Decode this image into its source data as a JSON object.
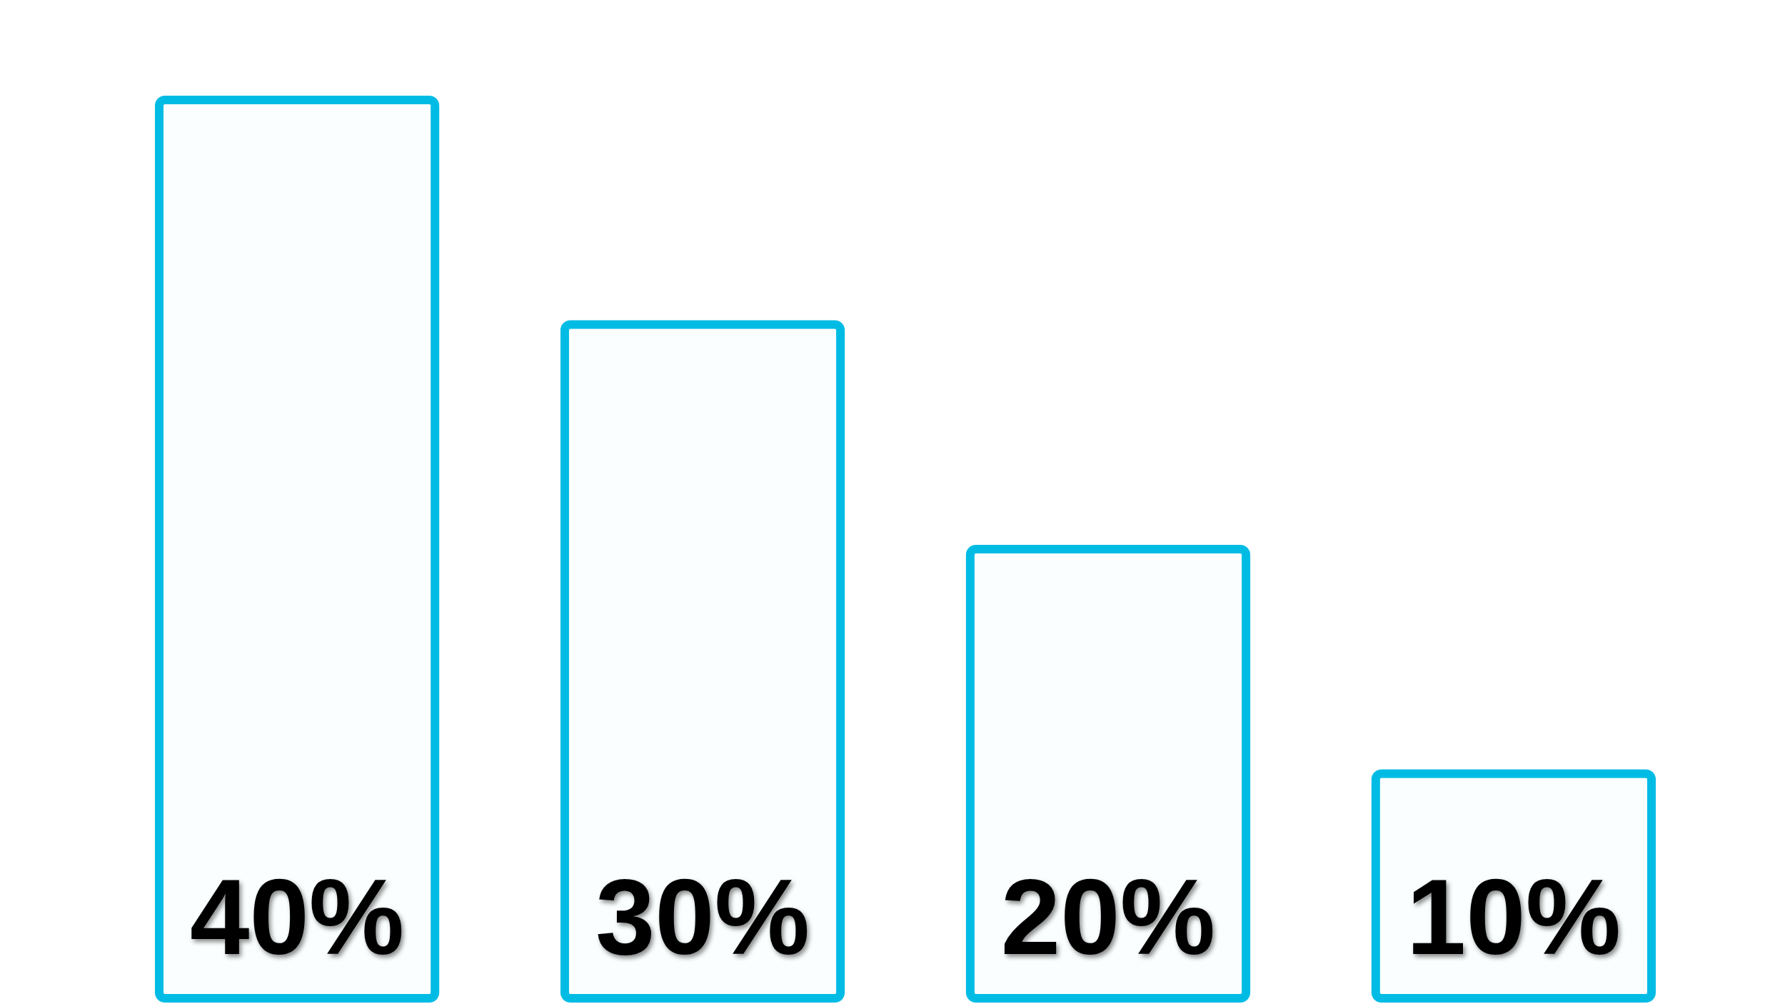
{
  "chart_data": {
    "type": "bar",
    "categories": [
      null,
      null,
      null,
      null
    ],
    "values": [
      40,
      30,
      20,
      10
    ],
    "color": "#00bce4",
    "value_labels": [
      "40%",
      "30%",
      "20%",
      "10%"
    ]
  }
}
